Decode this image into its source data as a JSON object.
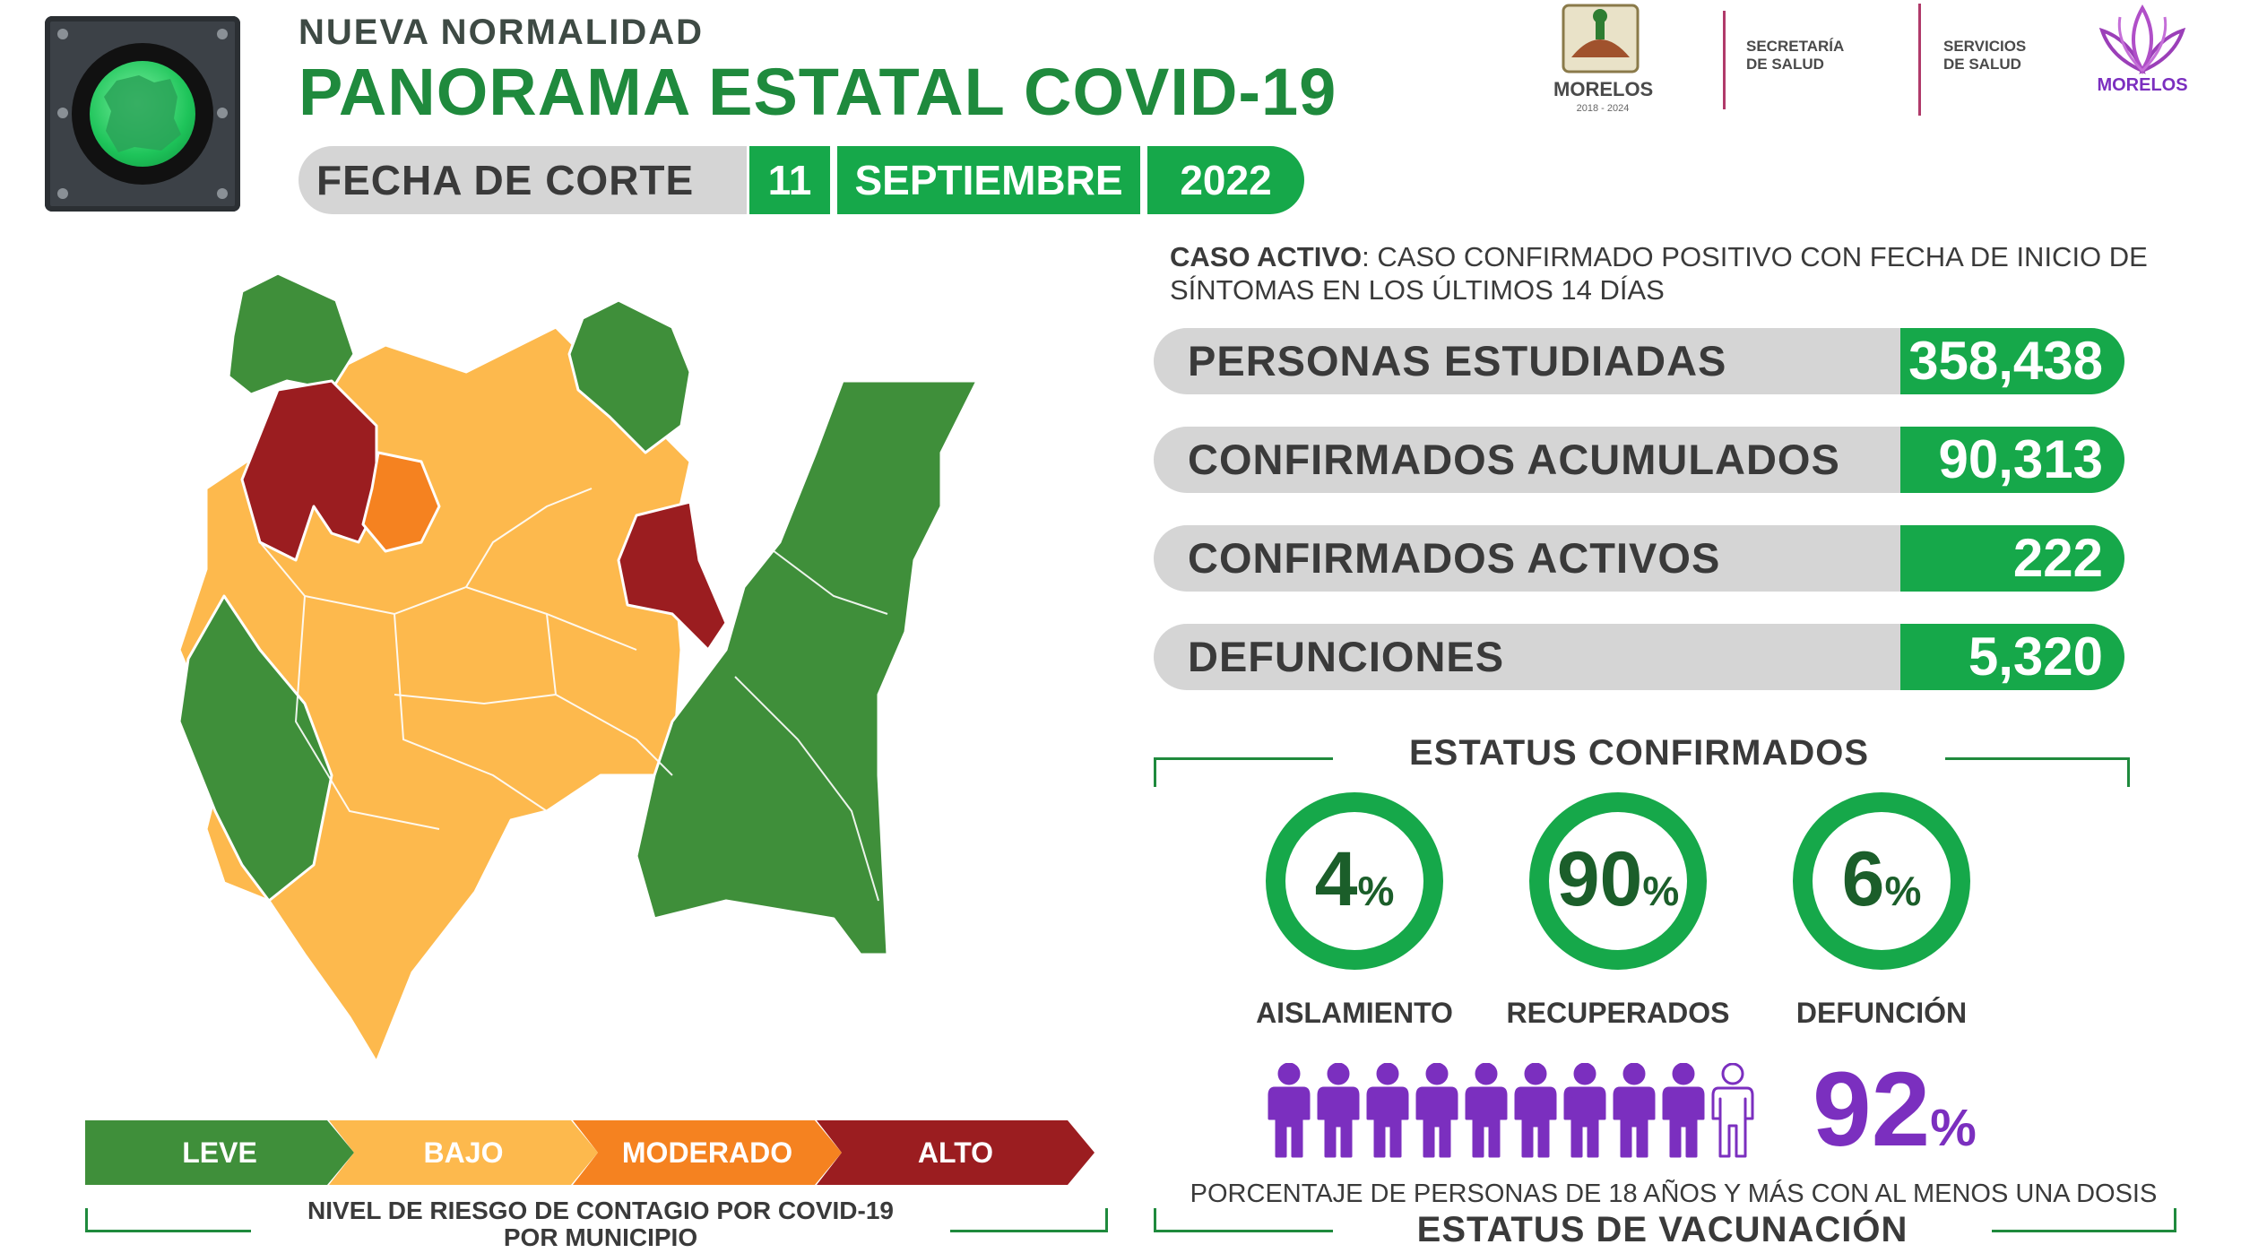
{
  "header": {
    "kicker": "NUEVA NORMALIDAD",
    "title": "PANORAMA ESTATAL COVID-19",
    "date_label": "FECHA DE CORTE",
    "day": "11",
    "month": "SEPTIEMBRE",
    "year": "2022"
  },
  "logos": {
    "morelos": "MORELOS",
    "morelos_years": "2018 - 2024",
    "secretaria_1": "SECRETARÍA",
    "secretaria_2": "DE SALUD",
    "servicios_1": "SERVICIOS",
    "servicios_2": "DE SALUD",
    "morelos_brand": "MORELOS"
  },
  "definition": {
    "term": "CASO ACTIVO",
    "text": ": CASO CONFIRMADO POSITIVO CON FECHA DE INICIO DE SÍNTOMAS EN LOS ÚLTIMOS 14 DÍAS"
  },
  "stats": [
    {
      "label": "PERSONAS ESTUDIADAS",
      "value": "358,438"
    },
    {
      "label": "CONFIRMADOS ACUMULADOS",
      "value": "90,313"
    },
    {
      "label": "CONFIRMADOS ACTIVOS",
      "value": "222"
    },
    {
      "label": "DEFUNCIONES",
      "value": "5,320"
    }
  ],
  "status": {
    "title": "ESTATUS CONFIRMADOS",
    "items": [
      {
        "value": "4",
        "suffix": "%",
        "label": "AISLAMIENTO"
      },
      {
        "value": "90",
        "suffix": "%",
        "label": "RECUPERADOS"
      },
      {
        "value": "6",
        "suffix": "%",
        "label": "DEFUNCIÓN"
      }
    ]
  },
  "vaccination": {
    "percent": "92",
    "suffix": "%",
    "filled_people": 9,
    "total_people": 10,
    "caption": "PORCENTAJE DE PERSONAS DE 18 AÑOS Y MÁS CON AL MENOS UNA DOSIS",
    "title": "ESTATUS DE VACUNACIÓN"
  },
  "legend": {
    "items": [
      {
        "label": "LEVE",
        "color": "#3f8f3a"
      },
      {
        "label": "BAJO",
        "color": "#fdb94d"
      },
      {
        "label": "MODERADO",
        "color": "#f58220"
      },
      {
        "label": "ALTO",
        "color": "#9b1d20"
      }
    ],
    "caption_pre": "NIVEL DE RIESGO DE CONTAGIO POR ",
    "caption_bold": "COVID-19",
    "caption_line2": "POR MUNICIPIO"
  },
  "colors": {
    "green": "#16a84a",
    "dark_green": "#1f8a3d",
    "gray_pill": "#d5d5d5",
    "purple": "#7b2fbf"
  }
}
